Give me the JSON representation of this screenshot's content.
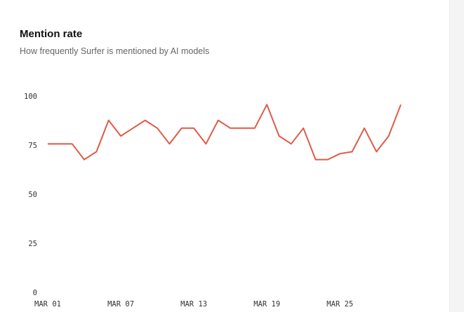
{
  "chart_data": {
    "type": "line",
    "title": "Mention rate",
    "subtitle": "How frequently Surfer is mentioned by AI models",
    "categories": [
      "MAR 01",
      null,
      null,
      null,
      null,
      null,
      "MAR 07",
      null,
      null,
      null,
      null,
      null,
      "MAR 13",
      null,
      null,
      null,
      null,
      null,
      "MAR 19",
      null,
      null,
      null,
      null,
      null,
      "MAR 25",
      null,
      null,
      null,
      null,
      null
    ],
    "series": [
      {
        "name": "Mention rate",
        "color": "#e05a47",
        "values": [
          76,
          76,
          76,
          68,
          72,
          88,
          80,
          84,
          88,
          84,
          76,
          84,
          84,
          76,
          88,
          84,
          84,
          84,
          96,
          80,
          76,
          84,
          68,
          68,
          71,
          72,
          84,
          72,
          80,
          96
        ]
      }
    ],
    "ylim": [
      0,
      100
    ],
    "yticks": [
      0,
      25,
      50,
      75,
      100
    ],
    "grid": false
  }
}
